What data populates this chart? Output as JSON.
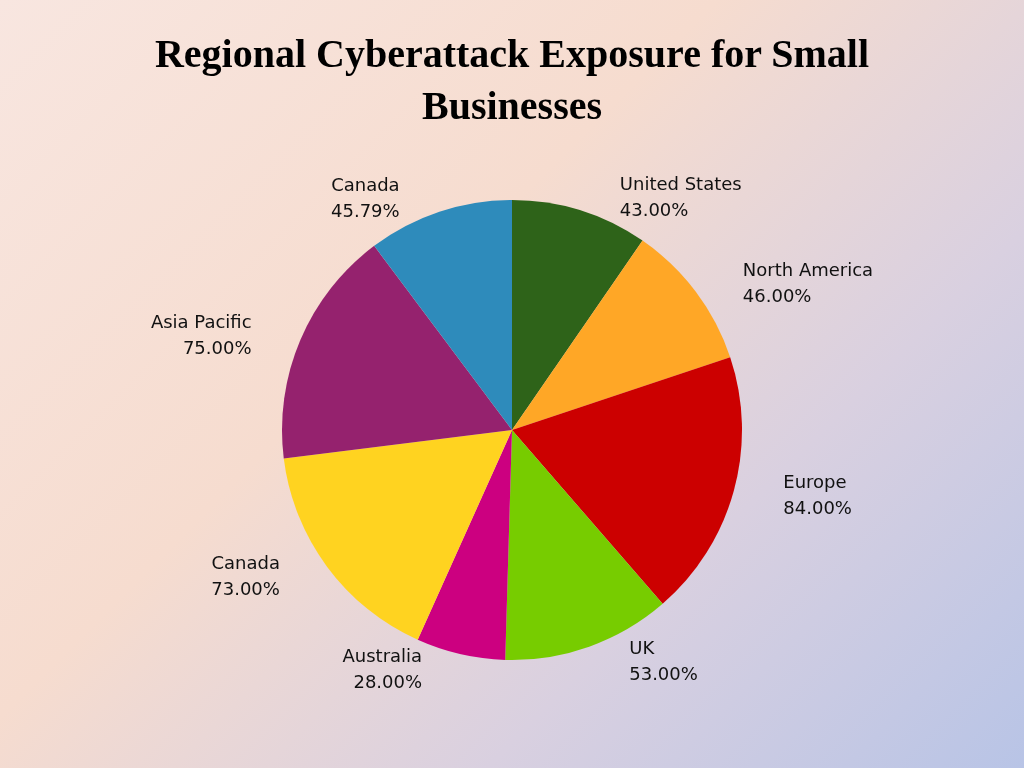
{
  "chart_data": {
    "type": "pie",
    "title": "Regional Cyberattack Exposure for Small Businesses",
    "categories": [
      "United States",
      "North America",
      "Europe",
      "UK",
      "Australia",
      "Canada",
      "Asia Pacific",
      "Canada"
    ],
    "values": [
      43,
      46,
      84,
      53,
      28,
      73,
      75,
      45.79
    ],
    "value_labels": [
      "43.00%",
      "46.00%",
      "84.00%",
      "53.00%",
      "28.00%",
      "73.00%",
      "75.00%",
      "45.79%"
    ],
    "colors": [
      "#2e6319",
      "#ffa726",
      "#cc0000",
      "#77cc00",
      "#cc0080",
      "#ffd320",
      "#95226e",
      "#2e8bbb"
    ]
  }
}
